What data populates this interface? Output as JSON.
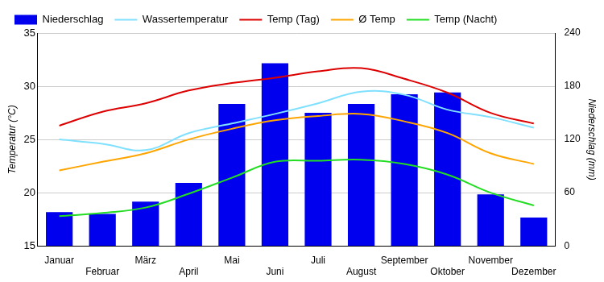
{
  "chart_data": {
    "type": "bar",
    "categories": [
      "Januar",
      "Februar",
      "März",
      "April",
      "Mai",
      "Juni",
      "Juli",
      "August",
      "September",
      "Oktober",
      "November",
      "Dezember"
    ],
    "y_label": "Temperatur (°C)",
    "y2_label": "Niederschlag (mm)",
    "ylim": [
      15,
      35
    ],
    "yticks": [
      15,
      20,
      25,
      30,
      35
    ],
    "y2lim": [
      0,
      240
    ],
    "y2ticks": [
      0,
      60,
      120,
      180,
      240
    ],
    "grid": true,
    "legend": "top",
    "series": [
      {
        "name": "Niederschlag",
        "type": "bar",
        "axis": "y2",
        "color": "#0000ee",
        "values": [
          38,
          36,
          50,
          71,
          160,
          206,
          150,
          160,
          171,
          173,
          58,
          32
        ]
      },
      {
        "name": "Wassertemperatur",
        "type": "line",
        "color": "#80e0ff",
        "marker": "none",
        "values": [
          25.0,
          24.6,
          24.0,
          25.6,
          26.5,
          27.4,
          28.4,
          29.5,
          29.2,
          27.8,
          27.1,
          26.1
        ]
      },
      {
        "name": "Temp (Tag)",
        "type": "line",
        "color": "#dd0000",
        "marker": "none",
        "values": [
          26.3,
          27.6,
          28.4,
          29.6,
          30.3,
          30.8,
          31.4,
          31.7,
          30.7,
          29.4,
          27.5,
          26.5
        ]
      },
      {
        "name": "Ø Temp",
        "type": "line",
        "color": "#ffa500",
        "marker": "none",
        "values": [
          22.1,
          22.9,
          23.7,
          25.0,
          26.0,
          26.8,
          27.2,
          27.4,
          26.7,
          25.6,
          23.7,
          22.7
        ]
      },
      {
        "name": "Temp (Nacht)",
        "type": "line",
        "color": "#22dd22",
        "marker": "none",
        "values": [
          17.8,
          18.1,
          18.6,
          19.9,
          21.4,
          22.9,
          23.0,
          23.1,
          22.7,
          21.7,
          20.0,
          18.8
        ]
      }
    ]
  }
}
